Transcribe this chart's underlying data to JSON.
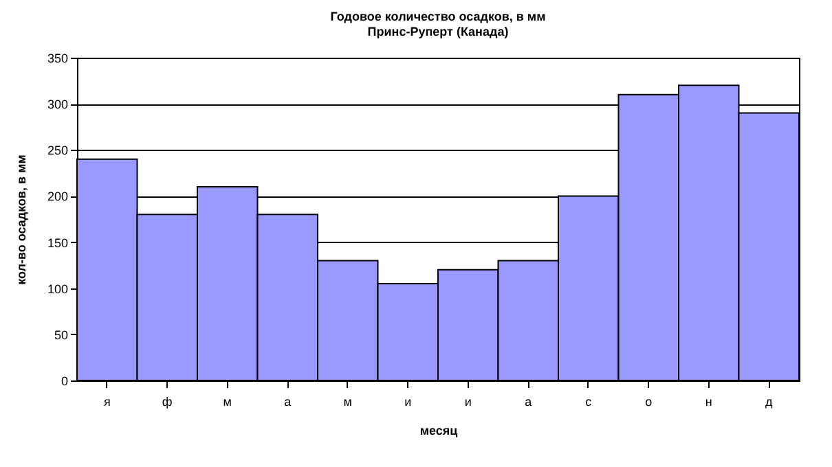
{
  "chart_data": {
    "type": "bar",
    "title": "Годовое количество осадков, в мм",
    "subtitle": "Принс-Руперт (Канада)",
    "xlabel": "месяц",
    "ylabel": "кол-во осадков, в мм",
    "categories": [
      "я",
      "ф",
      "м",
      "а",
      "м",
      "и",
      "и",
      "а",
      "с",
      "о",
      "н",
      "д"
    ],
    "values": [
      240,
      180,
      210,
      180,
      130,
      105,
      120,
      130,
      200,
      310,
      320,
      290
    ],
    "color": "#9999ff",
    "ylim": [
      0,
      350
    ],
    "yticks": [
      0,
      50,
      100,
      150,
      200,
      250,
      300,
      350
    ],
    "grid": "y"
  }
}
